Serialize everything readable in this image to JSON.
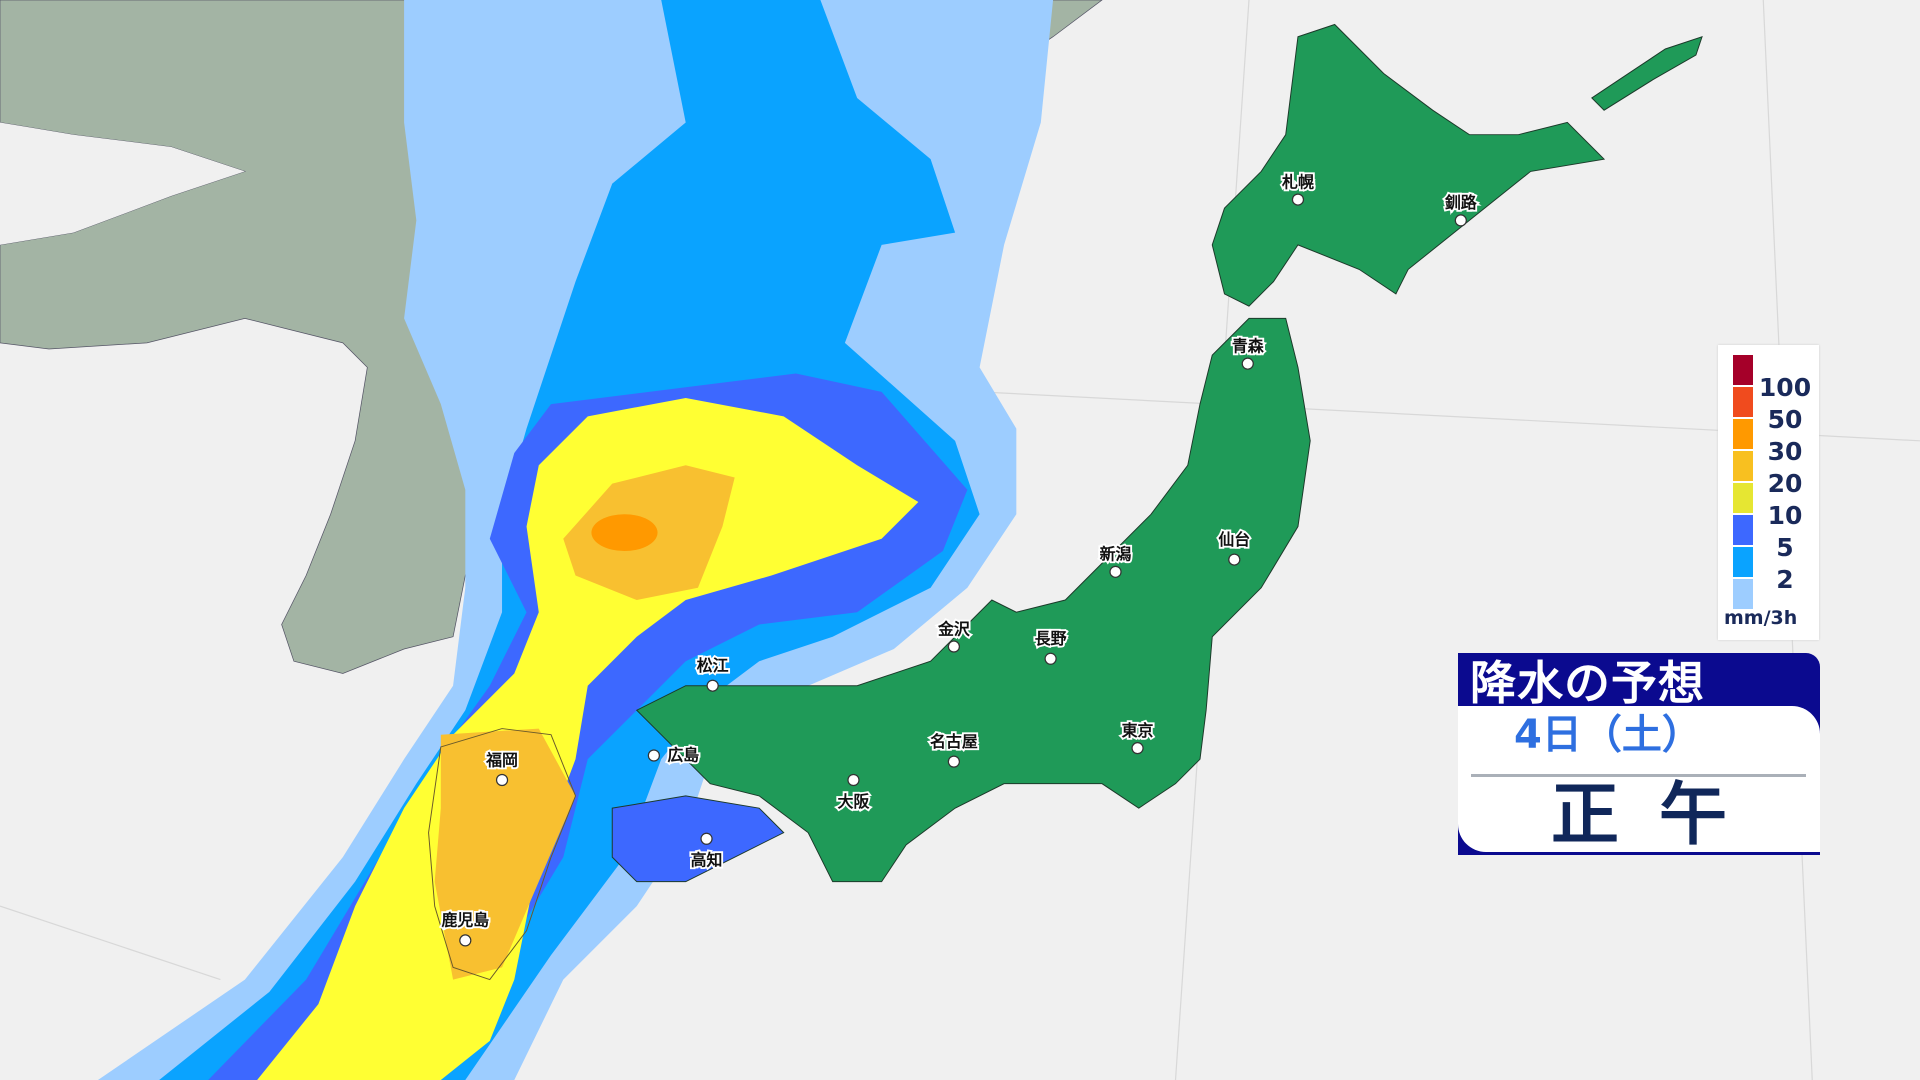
{
  "title": "降水の予想",
  "date": "4日（土）",
  "time": "正午",
  "legend": {
    "unit": "mm/3h",
    "ticks": [
      "100",
      "50",
      "30",
      "20",
      "10",
      "5",
      "2"
    ],
    "colors": [
      "#a50029",
      "#f04b1e",
      "#ff9900",
      "#f8c020",
      "#e6e632",
      "#3d68ff",
      "#0aa3ff",
      "#9dcdff"
    ]
  },
  "cities": [
    "札幌",
    "釧路",
    "青森",
    "新潟",
    "仙台",
    "金沢",
    "長野",
    "東京",
    "名古屋",
    "大阪",
    "松江",
    "広島",
    "福岡",
    "高知",
    "鹿児島"
  ],
  "colors": {
    "sea": "#f0f0f0",
    "foreign_land": "#a3b4a4",
    "japan_land": "#1f9a58",
    "title_bg": "#0b0a8f"
  }
}
